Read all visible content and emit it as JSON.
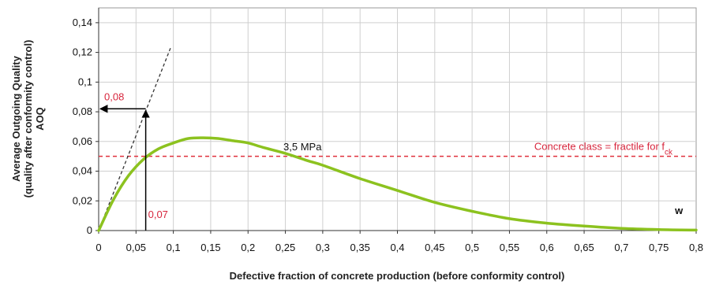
{
  "chart_data": {
    "type": "line",
    "xlabel": "Defective fraction of concrete production (before conformity control)",
    "ylabel_lines": [
      "Average Outgoing Quality",
      "(quality after conformity control)",
      "AOQ"
    ],
    "xlim": [
      0,
      0.8
    ],
    "ylim": [
      0,
      0.15
    ],
    "x_ticks": [
      "0",
      "0,05",
      "0,1",
      "0,15",
      "0,2",
      "0,25",
      "0,3",
      "0,35",
      "0,4",
      "0,45",
      "0,5",
      "0,55",
      "0,6",
      "0,65",
      "0,7",
      "0,75",
      "0,8"
    ],
    "x_tick_values": [
      0,
      0.05,
      0.1,
      0.15,
      0.2,
      0.25,
      0.3,
      0.35,
      0.4,
      0.45,
      0.5,
      0.55,
      0.6,
      0.65,
      0.7,
      0.75,
      0.8
    ],
    "y_ticks": [
      "0",
      "0,02",
      "0,04",
      "0,06",
      "0,08",
      "0,1",
      "0,12",
      "0,14"
    ],
    "y_tick_values": [
      0,
      0.02,
      0.04,
      0.06,
      0.08,
      0.1,
      0.12,
      0.14
    ],
    "grid": true,
    "series": [
      {
        "color": "#8cc21f",
        "x": [
          0,
          0.02,
          0.04,
          0.06,
          0.08,
          0.1,
          0.12,
          0.14,
          0.16,
          0.18,
          0.2,
          0.22,
          0.25,
          0.28,
          0.3,
          0.35,
          0.4,
          0.45,
          0.5,
          0.55,
          0.6,
          0.65,
          0.7,
          0.75,
          0.8
        ],
        "y": [
          0,
          0.021,
          0.037,
          0.048,
          0.055,
          0.059,
          0.062,
          0.0625,
          0.062,
          0.0605,
          0.059,
          0.056,
          0.052,
          0.047,
          0.044,
          0.035,
          0.027,
          0.019,
          0.013,
          0.008,
          0.005,
          0.003,
          0.0015,
          0.0007,
          0.0003
        ]
      }
    ],
    "tangent_line": {
      "color": "#333333",
      "x": [
        0,
        0.097
      ],
      "y": [
        0,
        0.124
      ]
    },
    "reference_line": {
      "y": 0.05,
      "color": "#e0303c",
      "label": "Concrete class = fractile for f",
      "label_sub": "ck"
    },
    "annotations": {
      "y_arrow": {
        "label": "0,08",
        "x_from": 0.063,
        "x_to": 0,
        "y": 0.082
      },
      "x_arrow": {
        "label": "0,07",
        "x": 0.063,
        "y_from": 0,
        "y_to": 0.082
      },
      "curve_label": {
        "text": "3,5 MPa",
        "x": 0.26,
        "y": 0.052
      },
      "corner_label": {
        "text": "w",
        "x": 0.78,
        "y": 0.01
      }
    }
  }
}
